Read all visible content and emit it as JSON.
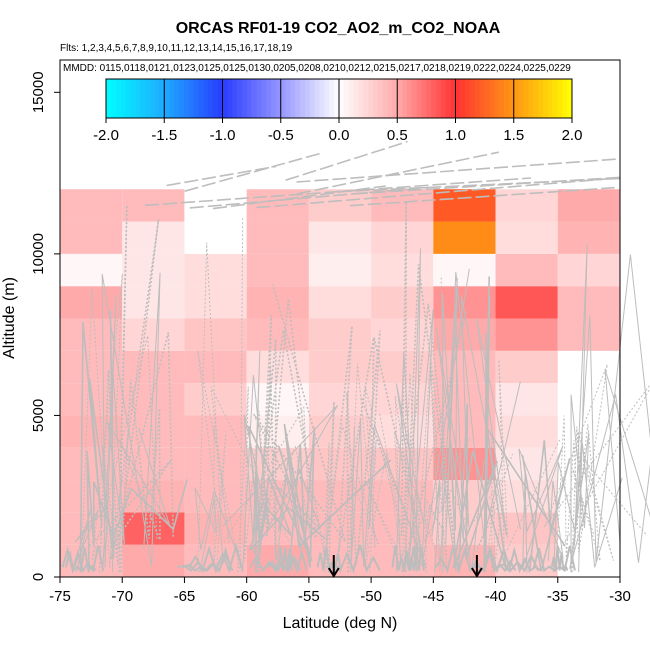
{
  "chart_data": {
    "type": "heatmap",
    "title": "ORCAS RF01-19 CO2_AO2_m_CO2_NOAA",
    "flights_line": "Flts: 1,2,3,4,5,6,7,8,9,10,11,12,13,14,15,16,17,18,19",
    "mmdd_line": "MMDD: 0115,0118,0121,0123,0125,0125,0130,0205,0208,0210,0212,0215,0217,0218,0219,0222,0224,0225,0229",
    "xlabel": "Latitude (deg N)",
    "ylabel": "Altitude (m)",
    "xlim": [
      -75,
      -30
    ],
    "ylim": [
      0,
      16000
    ],
    "x_ticks": [
      -75,
      -70,
      -65,
      -60,
      -55,
      -50,
      -45,
      -40,
      -35,
      -30
    ],
    "y_ticks": [
      0,
      5000,
      10000,
      15000
    ],
    "colorbar": {
      "range": [
        -2.0,
        2.0
      ],
      "ticks": [
        "-2.0",
        "-1.5",
        "-1.0",
        "-0.5",
        "0.0",
        "0.5",
        "1.0",
        "1.5",
        "2.0"
      ]
    },
    "lat_bins": [
      -75,
      -70,
      -65,
      -60,
      -55,
      -50,
      -45,
      -40,
      -35,
      -30
    ],
    "alt_bins": [
      0,
      1000,
      2000,
      3000,
      4000,
      5000,
      6000,
      7000,
      8000,
      9000,
      10000,
      11000,
      12000
    ],
    "cells": [
      [
        0.4,
        0.5,
        0.4,
        0.5,
        0.4,
        0.4,
        0.45,
        0.3,
        null
      ],
      [
        0.4,
        0.8,
        0.45,
        0.4,
        0.4,
        0.4,
        0.3,
        0.35,
        null
      ],
      [
        0.4,
        0.45,
        0.4,
        0.4,
        0.4,
        0.4,
        0.3,
        0.2,
        null
      ],
      [
        0.4,
        0.4,
        0.4,
        0.3,
        0.35,
        0.35,
        0.6,
        0.15,
        null
      ],
      [
        0.45,
        0.4,
        0.4,
        0.1,
        0.3,
        0.2,
        0.4,
        0.2,
        null
      ],
      [
        0.4,
        0.4,
        0.3,
        0.05,
        0.25,
        0.25,
        0.4,
        0.15,
        null
      ],
      [
        0.4,
        0.4,
        0.4,
        0.2,
        0.3,
        0.3,
        0.4,
        0.3,
        null
      ],
      [
        0.4,
        0.25,
        0.35,
        0.4,
        0.3,
        0.25,
        0.5,
        0.6,
        0.4
      ],
      [
        0.5,
        0.15,
        0.2,
        0.45,
        0.2,
        0.3,
        0.6,
        0.85,
        0.4
      ],
      [
        0.05,
        0.15,
        0.2,
        0.4,
        0.1,
        0.2,
        0.05,
        0.4,
        0.25
      ],
      [
        0.4,
        0.15,
        0.0,
        0.4,
        0.15,
        0.25,
        1.45,
        0.2,
        0.45
      ],
      [
        0.4,
        0.4,
        0.0,
        0.4,
        0.3,
        0.4,
        1.2,
        0.25,
        0.5
      ],
      [
        0.5,
        0.35,
        0.4,
        0.5,
        0.35,
        0.3,
        1.25,
        0.3,
        0.55
      ]
    ],
    "markers": [
      {
        "lat": -53.0,
        "label": "arrow"
      },
      {
        "lat": -41.5,
        "label": "arrow"
      }
    ]
  }
}
